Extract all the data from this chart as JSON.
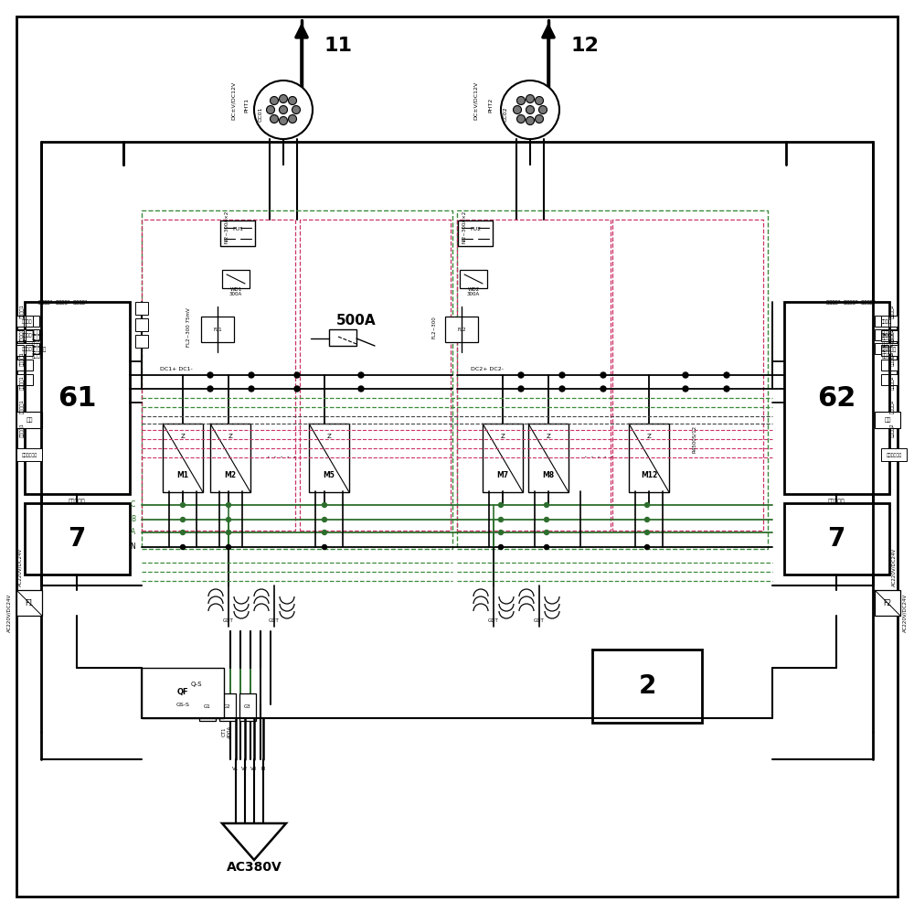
{
  "bg_color": "#ffffff",
  "black": "#000000",
  "green": "#2d6e2d",
  "dashed_green": "#3a8a3a",
  "pink": "#cc3366",
  "blue": "#3333cc",
  "gray": "#555555",
  "label_11": "11",
  "label_12": "12",
  "label_61": "61",
  "label_62": "62",
  "label_7": "7",
  "label_2": "2",
  "label_500A": "500A",
  "label_AC380V": "AC380V"
}
